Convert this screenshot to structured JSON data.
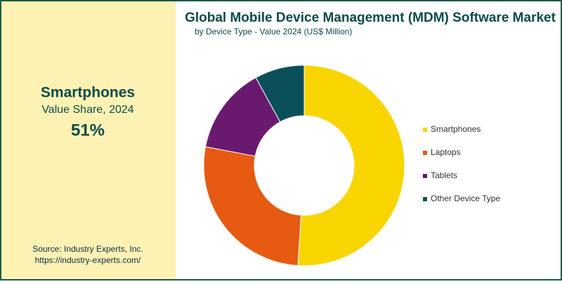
{
  "panel": {
    "title": "Smartphones",
    "subtitle": "Value Share, 2024",
    "highlight": "51%"
  },
  "source": [
    "Source: Industry Experts, Inc.",
    "https://industry-experts.com/"
  ],
  "chart_data": {
    "type": "donut",
    "title": "Global Mobile Device Management (MDM) Software Market",
    "subtitle": "by Device Type - Value 2024 (US$ Million)",
    "categories": [
      "Smartphones",
      "Laptops",
      "Tablets",
      "Other Device Type"
    ],
    "values": [
      51,
      27,
      14,
      8
    ],
    "colors": [
      "#f9d500",
      "#e65a12",
      "#6a1a6e",
      "#0b4f5a"
    ]
  }
}
